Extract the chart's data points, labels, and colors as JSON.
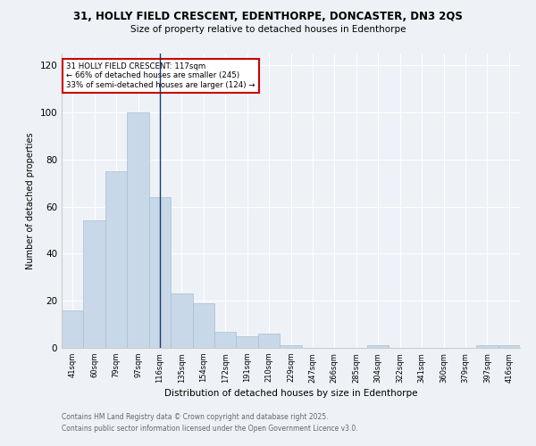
{
  "title1": "31, HOLLY FIELD CRESCENT, EDENTHORPE, DONCASTER, DN3 2QS",
  "title2": "Size of property relative to detached houses in Edenthorpe",
  "xlabel": "Distribution of detached houses by size in Edenthorpe",
  "ylabel": "Number of detached properties",
  "categories": [
    "41sqm",
    "60sqm",
    "79sqm",
    "97sqm",
    "116sqm",
    "135sqm",
    "154sqm",
    "172sqm",
    "191sqm",
    "210sqm",
    "229sqm",
    "247sqm",
    "266sqm",
    "285sqm",
    "304sqm",
    "322sqm",
    "341sqm",
    "360sqm",
    "379sqm",
    "397sqm",
    "416sqm"
  ],
  "values": [
    16,
    54,
    75,
    100,
    64,
    23,
    19,
    7,
    5,
    6,
    1,
    0,
    0,
    0,
    1,
    0,
    0,
    0,
    0,
    1,
    1
  ],
  "bar_color": "#c8d8e8",
  "bar_edge_color": "#a8bfcf",
  "property_line_x": 4,
  "property_line_color": "#1a3a6a",
  "annotation_text": "31 HOLLY FIELD CRESCENT: 117sqm\n← 66% of detached houses are smaller (245)\n33% of semi-detached houses are larger (124) →",
  "annotation_box_color": "#ffffff",
  "annotation_box_edge": "#cc0000",
  "ylim": [
    0,
    125
  ],
  "yticks": [
    0,
    20,
    40,
    60,
    80,
    100,
    120
  ],
  "background_color": "#eef2f7",
  "footer1": "Contains HM Land Registry data © Crown copyright and database right 2025.",
  "footer2": "Contains public sector information licensed under the Open Government Licence v3.0."
}
